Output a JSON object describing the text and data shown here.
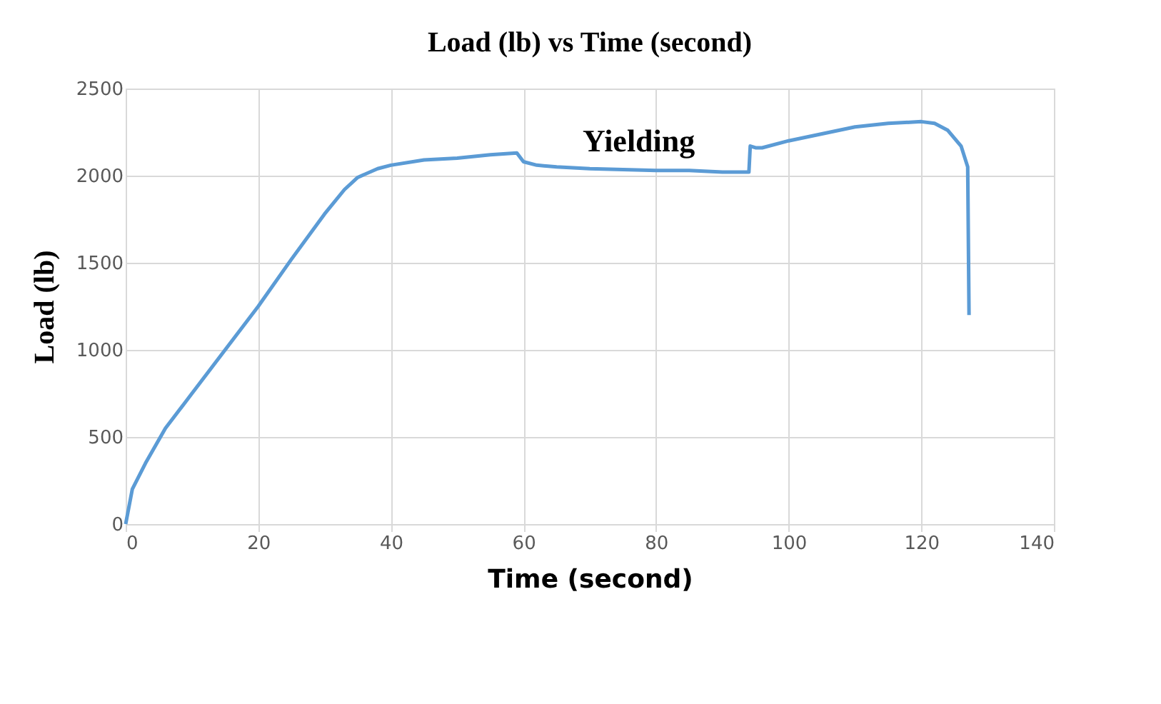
{
  "chart_data": {
    "type": "line",
    "title": "Load (lb) vs Time (second)",
    "xlabel": "Time (second)",
    "ylabel": "Load (lb)",
    "x": [
      0,
      1,
      3,
      6,
      10,
      15,
      20,
      25,
      30,
      33,
      35,
      38,
      40,
      45,
      50,
      55,
      59,
      60,
      62,
      65,
      70,
      80,
      85,
      90,
      94,
      94.2,
      95,
      96,
      100,
      105,
      110,
      115,
      120,
      122,
      124,
      126,
      127,
      127.2
    ],
    "series": [
      {
        "color": "#5b9bd5",
        "values": [
          0,
          200,
          350,
          550,
          750,
          1000,
          1250,
          1520,
          1780,
          1920,
          1990,
          2040,
          2060,
          2090,
          2100,
          2120,
          2130,
          2080,
          2060,
          2050,
          2040,
          2030,
          2030,
          2020,
          2020,
          2170,
          2160,
          2160,
          2200,
          2240,
          2280,
          2300,
          2310,
          2300,
          2260,
          2170,
          2050,
          1200
        ]
      }
    ],
    "xlim": [
      0,
      140
    ],
    "xticks": [
      0,
      20,
      40,
      60,
      80,
      100,
      120,
      140
    ],
    "ylim": [
      0,
      2500
    ],
    "yticks": [
      0,
      500,
      1000,
      1500,
      2000,
      2500
    ],
    "grid": true,
    "marker": "none",
    "line_style": "solid",
    "annotations": [
      "Yielding"
    ]
  }
}
